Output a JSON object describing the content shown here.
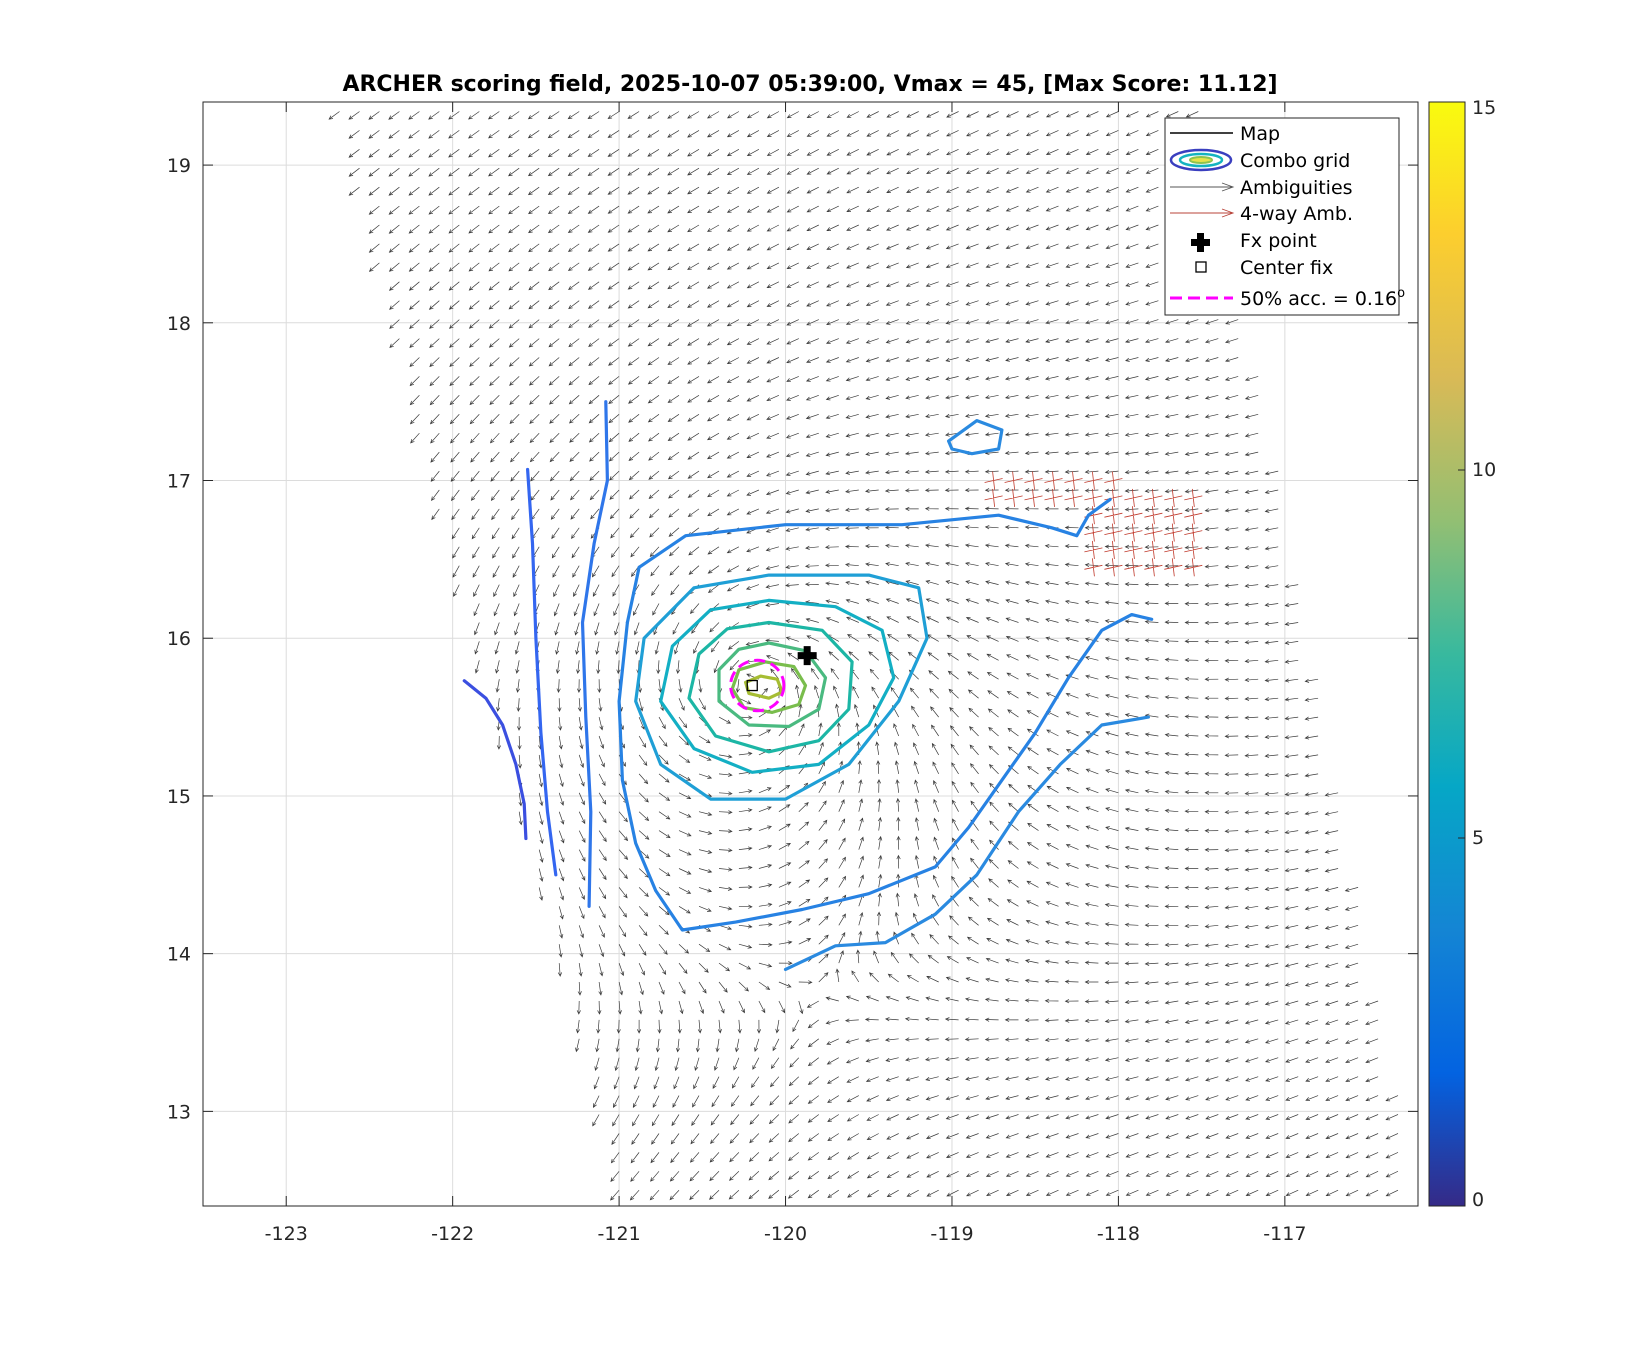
{
  "chart_data": {
    "type": "contour+quiver",
    "title": "ARCHER scoring field, 2025-10-07 05:39:00, Vmax = 45, [Max Score: 11.12]",
    "xlabel": "",
    "ylabel": "",
    "xlim": [
      -123.5,
      -116.2
    ],
    "ylim": [
      12.4,
      19.4
    ],
    "xticks": [
      -123,
      -122,
      -121,
      -120,
      -119,
      -118,
      -117
    ],
    "yticks": [
      13,
      14,
      15,
      16,
      17,
      18,
      19
    ],
    "grid": true,
    "colorbar": {
      "ticks": [
        0,
        5,
        10,
        15
      ],
      "range": [
        0,
        15
      ],
      "colormap": "parula"
    },
    "legend": {
      "position": "top-right",
      "entries": [
        "Map",
        "Combo grid",
        "Ambiguities",
        "4-way Amb.",
        "Fx point",
        "Center fix",
        "50% acc. = 0.16"
      ],
      "superscript": "o"
    },
    "fx_point": {
      "lon": -119.87,
      "lat": 15.89
    },
    "center_fix": {
      "lon": -120.2,
      "lat": 15.7
    },
    "acc_circle": {
      "lon": -120.17,
      "lat": 15.7,
      "radius_deg": 0.16
    },
    "contours": [
      {
        "level": 3.3,
        "color": "#3b4fe0",
        "points": [
          [
            -121.93,
            15.73
          ],
          [
            -121.8,
            15.62
          ],
          [
            -121.7,
            15.45
          ],
          [
            -121.62,
            15.2
          ],
          [
            -121.57,
            14.95
          ],
          [
            -121.56,
            14.73
          ]
        ]
      },
      {
        "level": 3.9,
        "color": "#3466f0",
        "points": [
          [
            -121.55,
            17.07
          ],
          [
            -121.52,
            16.6
          ],
          [
            -121.5,
            16.0
          ],
          [
            -121.47,
            15.4
          ],
          [
            -121.43,
            14.9
          ],
          [
            -121.38,
            14.5
          ]
        ]
      },
      {
        "level": 4.3,
        "color": "#2f76ea",
        "points": [
          [
            -121.08,
            17.5
          ],
          [
            -121.07,
            17.0
          ],
          [
            -121.15,
            16.6
          ],
          [
            -121.22,
            16.1
          ],
          [
            -121.2,
            15.5
          ],
          [
            -121.17,
            14.9
          ],
          [
            -121.18,
            14.3
          ]
        ]
      },
      {
        "level": 4.7,
        "color": "#2782e3",
        "points": [
          [
            -120.95,
            16.1
          ],
          [
            -120.88,
            16.45
          ],
          [
            -120.6,
            16.65
          ],
          [
            -120.0,
            16.72
          ],
          [
            -119.3,
            16.72
          ],
          [
            -118.72,
            16.78
          ],
          [
            -118.4,
            16.7
          ],
          [
            -118.25,
            16.65
          ],
          [
            -118.18,
            16.78
          ],
          [
            -118.05,
            16.88
          ]
        ]
      },
      {
        "level": 4.7,
        "color": "#2782e3",
        "points": [
          [
            -120.95,
            16.1
          ],
          [
            -121.0,
            15.6
          ],
          [
            -120.98,
            15.1
          ],
          [
            -120.9,
            14.7
          ],
          [
            -120.78,
            14.4
          ],
          [
            -120.62,
            14.15
          ],
          [
            -120.3,
            14.2
          ],
          [
            -119.9,
            14.28
          ],
          [
            -119.5,
            14.38
          ],
          [
            -119.1,
            14.55
          ],
          [
            -118.9,
            14.8
          ],
          [
            -118.7,
            15.1
          ],
          [
            -118.5,
            15.4
          ],
          [
            -118.3,
            15.75
          ],
          [
            -118.1,
            16.05
          ],
          [
            -117.92,
            16.15
          ],
          [
            -117.8,
            16.12
          ]
        ]
      },
      {
        "level": 4.9,
        "color": "#2a8ae0",
        "points": [
          [
            -120.0,
            13.9
          ],
          [
            -119.7,
            14.05
          ],
          [
            -119.4,
            14.07
          ],
          [
            -119.1,
            14.25
          ],
          [
            -118.85,
            14.5
          ],
          [
            -118.6,
            14.9
          ],
          [
            -118.35,
            15.2
          ],
          [
            -118.1,
            15.45
          ],
          [
            -117.82,
            15.5
          ]
        ]
      },
      {
        "level": 4.9,
        "color": "#2a8ae0",
        "points": [
          [
            -119.02,
            17.25
          ],
          [
            -118.85,
            17.38
          ],
          [
            -118.7,
            17.32
          ],
          [
            -118.72,
            17.2
          ],
          [
            -118.88,
            17.17
          ],
          [
            -119.0,
            17.2
          ],
          [
            -119.02,
            17.25
          ]
        ]
      },
      {
        "level": 5.8,
        "color": "#1f9fd6",
        "points": [
          [
            -120.1,
            16.4
          ],
          [
            -119.5,
            16.4
          ],
          [
            -119.2,
            16.32
          ],
          [
            -119.15,
            16.0
          ],
          [
            -119.32,
            15.6
          ],
          [
            -119.62,
            15.2
          ],
          [
            -120.0,
            14.98
          ],
          [
            -120.45,
            14.98
          ],
          [
            -120.75,
            15.2
          ],
          [
            -120.9,
            15.6
          ],
          [
            -120.85,
            16.0
          ],
          [
            -120.55,
            16.32
          ],
          [
            -120.1,
            16.4
          ]
        ]
      },
      {
        "level": 6.7,
        "color": "#13afc4",
        "points": [
          [
            -120.1,
            16.24
          ],
          [
            -119.7,
            16.2
          ],
          [
            -119.42,
            16.05
          ],
          [
            -119.35,
            15.75
          ],
          [
            -119.5,
            15.45
          ],
          [
            -119.8,
            15.2
          ],
          [
            -120.2,
            15.15
          ],
          [
            -120.55,
            15.3
          ],
          [
            -120.75,
            15.6
          ],
          [
            -120.68,
            15.95
          ],
          [
            -120.45,
            16.18
          ],
          [
            -120.1,
            16.24
          ]
        ]
      },
      {
        "level": 7.6,
        "color": "#1cb6a5",
        "points": [
          [
            -120.1,
            16.1
          ],
          [
            -119.78,
            16.05
          ],
          [
            -119.6,
            15.85
          ],
          [
            -119.62,
            15.55
          ],
          [
            -119.8,
            15.35
          ],
          [
            -120.1,
            15.28
          ],
          [
            -120.42,
            15.38
          ],
          [
            -120.58,
            15.62
          ],
          [
            -120.52,
            15.9
          ],
          [
            -120.35,
            16.06
          ],
          [
            -120.1,
            16.1
          ]
        ]
      },
      {
        "level": 8.6,
        "color": "#4aba80",
        "points": [
          [
            -120.1,
            15.97
          ],
          [
            -119.88,
            15.92
          ],
          [
            -119.76,
            15.75
          ],
          [
            -119.8,
            15.55
          ],
          [
            -119.98,
            15.44
          ],
          [
            -120.22,
            15.45
          ],
          [
            -120.4,
            15.6
          ],
          [
            -120.4,
            15.8
          ],
          [
            -120.28,
            15.93
          ],
          [
            -120.1,
            15.97
          ]
        ]
      },
      {
        "level": 9.5,
        "color": "#79bd4c",
        "points": [
          [
            -120.12,
            15.85
          ],
          [
            -119.95,
            15.82
          ],
          [
            -119.88,
            15.7
          ],
          [
            -119.92,
            15.58
          ],
          [
            -120.08,
            15.53
          ],
          [
            -120.25,
            15.56
          ],
          [
            -120.32,
            15.68
          ],
          [
            -120.28,
            15.8
          ],
          [
            -120.12,
            15.85
          ]
        ]
      },
      {
        "level": 10.4,
        "color": "#a6bd33",
        "points": [
          [
            -120.15,
            15.76
          ],
          [
            -120.05,
            15.74
          ],
          [
            -120.02,
            15.66
          ],
          [
            -120.1,
            15.62
          ],
          [
            -120.22,
            15.65
          ],
          [
            -120.24,
            15.72
          ],
          [
            -120.15,
            15.76
          ]
        ]
      }
    ]
  }
}
